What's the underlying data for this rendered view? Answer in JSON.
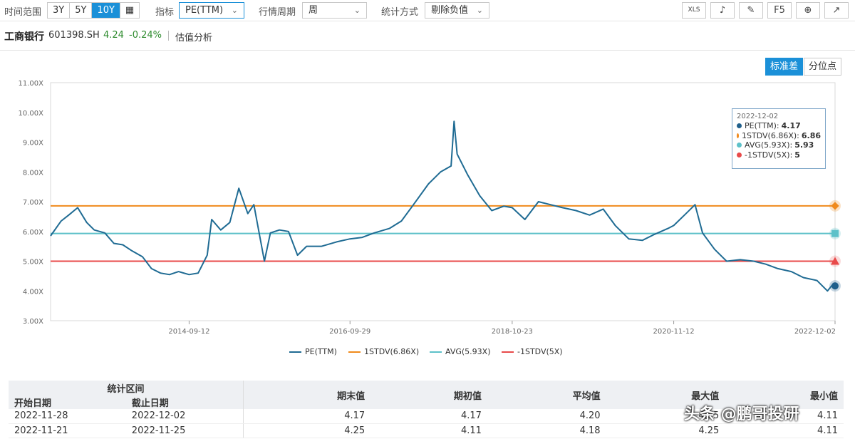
{
  "toolbar": {
    "time_range_label": "时间范围",
    "time_ranges": [
      "3Y",
      "5Y",
      "10Y"
    ],
    "active_range": "10Y",
    "indicator_label": "指标",
    "indicator_value": "PE(TTM)",
    "period_label": "行情周期",
    "period_value": "周",
    "stat_label": "统计方式",
    "stat_value": "剔除负值",
    "tools": [
      "XLS",
      "bell-icon",
      "edit-icon",
      "F5",
      "plus-circle-icon",
      "export-icon"
    ]
  },
  "stock": {
    "name": "工商银行",
    "code": "601398.SH",
    "price": "4.24",
    "change": "-0.24%",
    "view": "估值分析"
  },
  "modes": [
    "标准差",
    "分位点"
  ],
  "active_mode": "标准差",
  "tooltip": {
    "date": "2022-12-02",
    "rows": [
      {
        "label": "PE(TTM):",
        "value": "4.17",
        "color": "#1f5f8b"
      },
      {
        "label": "1STDV(6.86X):",
        "value": "6.86",
        "color": "#f08a1c"
      },
      {
        "label": "AVG(5.93X):",
        "value": "5.93",
        "color": "#5dc1c9"
      },
      {
        "label": "-1STDV(5X):",
        "value": "5",
        "color": "#e84a4a"
      }
    ]
  },
  "chart_data": {
    "type": "line",
    "y_ticks": [
      "3.00X",
      "4.00X",
      "5.00X",
      "6.00X",
      "7.00X",
      "8.00X",
      "9.00X",
      "10.00X",
      "11.00X"
    ],
    "ylim": [
      3,
      11
    ],
    "x_ticks": [
      "2014-09-12",
      "2016-09-29",
      "2018-10-23",
      "2020-11-12",
      "2022-12-02"
    ],
    "x_range": [
      "2012-12-07",
      "2022-12-02"
    ],
    "series": [
      {
        "name": "PE(TTM)",
        "color": "#1f6b93",
        "points": [
          [
            "2012-12-07",
            5.85
          ],
          [
            "2013-01-25",
            6.35
          ],
          [
            "2013-03-01",
            6.55
          ],
          [
            "2013-04-12",
            6.8
          ],
          [
            "2013-05-24",
            6.3
          ],
          [
            "2013-06-28",
            6.05
          ],
          [
            "2013-08-16",
            5.95
          ],
          [
            "2013-09-27",
            5.6
          ],
          [
            "2013-11-08",
            5.55
          ],
          [
            "2013-12-20",
            5.35
          ],
          [
            "2014-02-07",
            5.15
          ],
          [
            "2014-03-21",
            4.75
          ],
          [
            "2014-05-02",
            4.6
          ],
          [
            "2014-06-13",
            4.55
          ],
          [
            "2014-07-25",
            4.65
          ],
          [
            "2014-09-12",
            4.55
          ],
          [
            "2014-10-24",
            4.6
          ],
          [
            "2014-12-05",
            5.2
          ],
          [
            "2014-12-26",
            6.4
          ],
          [
            "2015-02-06",
            6.05
          ],
          [
            "2015-03-20",
            6.3
          ],
          [
            "2015-05-01",
            7.45
          ],
          [
            "2015-06-12",
            6.6
          ],
          [
            "2015-07-10",
            6.9
          ],
          [
            "2015-08-28",
            5.0
          ],
          [
            "2015-09-25",
            5.95
          ],
          [
            "2015-11-06",
            6.05
          ],
          [
            "2015-12-18",
            6.0
          ],
          [
            "2016-01-29",
            5.2
          ],
          [
            "2016-03-11",
            5.5
          ],
          [
            "2016-05-20",
            5.5
          ],
          [
            "2016-07-29",
            5.65
          ],
          [
            "2016-09-29",
            5.75
          ],
          [
            "2016-11-25",
            5.8
          ],
          [
            "2017-01-20",
            5.95
          ],
          [
            "2017-03-31",
            6.1
          ],
          [
            "2017-05-26",
            6.35
          ],
          [
            "2017-07-21",
            6.9
          ],
          [
            "2017-09-29",
            7.6
          ],
          [
            "2017-11-24",
            8.0
          ],
          [
            "2018-01-12",
            8.2
          ],
          [
            "2018-01-26",
            9.7
          ],
          [
            "2018-02-09",
            8.6
          ],
          [
            "2018-03-30",
            7.9
          ],
          [
            "2018-05-25",
            7.2
          ],
          [
            "2018-07-20",
            6.7
          ],
          [
            "2018-09-14",
            6.85
          ],
          [
            "2018-10-23",
            6.8
          ],
          [
            "2018-12-21",
            6.4
          ],
          [
            "2019-02-22",
            7.0
          ],
          [
            "2019-04-19",
            6.9
          ],
          [
            "2019-06-14",
            6.8
          ],
          [
            "2019-08-16",
            6.7
          ],
          [
            "2019-10-18",
            6.55
          ],
          [
            "2019-12-20",
            6.75
          ],
          [
            "2020-02-14",
            6.2
          ],
          [
            "2020-04-17",
            5.75
          ],
          [
            "2020-06-19",
            5.7
          ],
          [
            "2020-08-14",
            5.9
          ],
          [
            "2020-10-16",
            6.1
          ],
          [
            "2020-11-12",
            6.2
          ],
          [
            "2021-01-08",
            6.6
          ],
          [
            "2021-02-19",
            6.9
          ],
          [
            "2021-03-26",
            5.95
          ],
          [
            "2021-05-21",
            5.4
          ],
          [
            "2021-07-16",
            5.0
          ],
          [
            "2021-09-17",
            5.05
          ],
          [
            "2021-11-19",
            5.0
          ],
          [
            "2022-01-14",
            4.9
          ],
          [
            "2022-03-11",
            4.75
          ],
          [
            "2022-05-13",
            4.65
          ],
          [
            "2022-07-08",
            4.45
          ],
          [
            "2022-09-09",
            4.35
          ],
          [
            "2022-10-28",
            4.0
          ],
          [
            "2022-11-25",
            4.25
          ],
          [
            "2022-12-02",
            4.17
          ]
        ]
      },
      {
        "name": "1STDV(6.86X)",
        "color": "#f08a1c",
        "value": 6.86
      },
      {
        "name": "AVG(5.93X)",
        "color": "#5dc1c9",
        "value": 5.93
      },
      {
        "name": "-1STDV(5X)",
        "color": "#e84a4a",
        "value": 5.0
      }
    ]
  },
  "legend": [
    {
      "label": "PE(TTM)",
      "color": "#1f6b93"
    },
    {
      "label": "1STDV(6.86X)",
      "color": "#f08a1c"
    },
    {
      "label": "AVG(5.93X)",
      "color": "#5dc1c9"
    },
    {
      "label": "-1STDV(5X)",
      "color": "#e84a4a"
    }
  ],
  "table": {
    "group_header": "统计区间",
    "headers": [
      "开始日期",
      "截止日期",
      "期末值",
      "期初值",
      "平均值",
      "最大值",
      "最小值"
    ],
    "rows": [
      [
        "2022-11-28",
        "2022-12-02",
        "4.17",
        "4.17",
        "4.20",
        "4.25",
        "4.11"
      ],
      [
        "2022-11-21",
        "2022-11-25",
        "4.25",
        "4.11",
        "4.18",
        "4.25",
        "4.11"
      ]
    ]
  },
  "watermark": "头条 @鹏哥投研"
}
